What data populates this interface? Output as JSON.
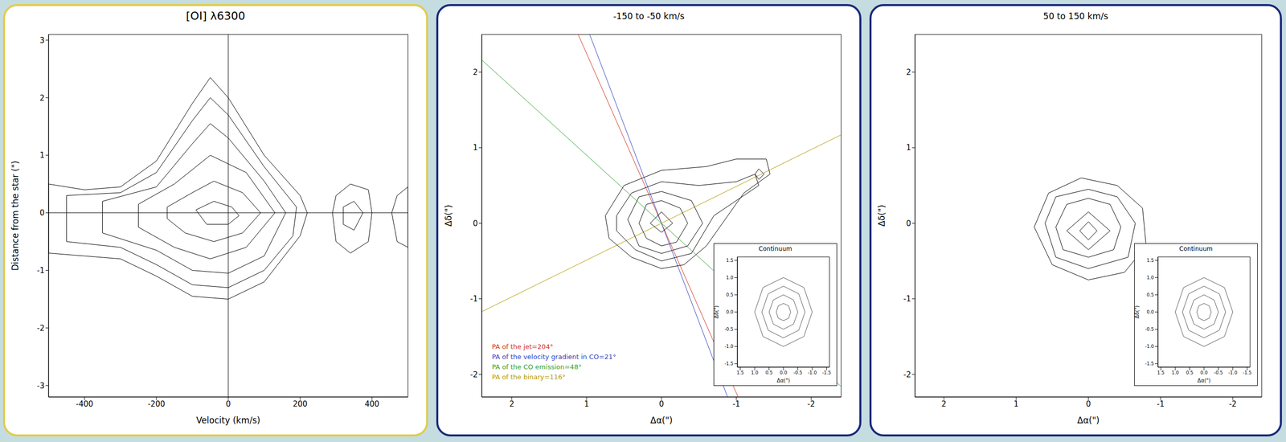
{
  "chart_data": [
    {
      "type": "contour",
      "title": "[OI] λ6300",
      "x_label": "Velocity (km/s)",
      "y_label": "Distance from the star (\")",
      "xlim": [
        -500,
        500
      ],
      "ylim": [
        -3.2,
        3.1
      ],
      "xticks": [
        -400,
        -200,
        0,
        200,
        400
      ],
      "yticks": [
        -3,
        -2,
        -1,
        0,
        1,
        2,
        3
      ],
      "color": "#000000",
      "x_ref": 0,
      "y_ref": 0,
      "contours": [
        {
          "x": [
            -500,
            -400,
            -300,
            -200,
            -100,
            -50,
            0,
            100,
            200,
            220,
            200,
            100,
            0,
            -100,
            -200,
            -300,
            -400,
            -500,
            -500
          ],
          "y": [
            0.5,
            0.4,
            0.45,
            0.9,
            1.9,
            2.35,
            2.0,
            1.0,
            0.3,
            0,
            -0.4,
            -1.2,
            -1.5,
            -1.45,
            -1.1,
            -0.8,
            -0.75,
            -0.7,
            0.5
          ]
        },
        {
          "x": [
            -450,
            -300,
            -200,
            -100,
            -50,
            0,
            100,
            190,
            180,
            100,
            0,
            -100,
            -200,
            -300,
            -450,
            -450
          ],
          "y": [
            0.3,
            0.35,
            0.7,
            1.6,
            2.0,
            1.7,
            0.8,
            0.1,
            -0.4,
            -1.0,
            -1.3,
            -1.25,
            -0.9,
            -0.6,
            -0.5,
            0.3
          ]
        },
        {
          "x": [
            -350,
            -200,
            -100,
            -50,
            0,
            100,
            160,
            100,
            0,
            -100,
            -200,
            -350,
            -350
          ],
          "y": [
            0.2,
            0.45,
            1.2,
            1.55,
            1.3,
            0.55,
            0,
            -0.75,
            -1.05,
            -1.0,
            -0.65,
            -0.35,
            0.2
          ]
        },
        {
          "x": [
            -250,
            -150,
            -50,
            50,
            130,
            50,
            -50,
            -150,
            -250,
            -250
          ],
          "y": [
            0.15,
            0.5,
            1.0,
            0.7,
            0,
            -0.6,
            -0.8,
            -0.6,
            -0.25,
            0.15
          ]
        },
        {
          "x": [
            -170,
            -100,
            -40,
            40,
            90,
            40,
            -40,
            -120,
            -170,
            -170
          ],
          "y": [
            0.1,
            0.35,
            0.55,
            0.35,
            0,
            -0.35,
            -0.5,
            -0.35,
            -0.1,
            0.1
          ]
        },
        {
          "x": [
            -90,
            -40,
            10,
            30,
            0,
            -60,
            -90
          ],
          "y": [
            0.05,
            0.2,
            0.1,
            -0.05,
            -0.2,
            -0.2,
            0.05
          ]
        },
        {
          "x": [
            300,
            340,
            390,
            400,
            390,
            340,
            300,
            290,
            300
          ],
          "y": [
            0.3,
            0.5,
            0.4,
            0,
            -0.5,
            -0.7,
            -0.5,
            0,
            0.3
          ]
        },
        {
          "x": [
            320,
            350,
            375,
            350,
            320,
            320
          ],
          "y": [
            0.1,
            0.2,
            0,
            -0.3,
            -0.2,
            0.1
          ]
        },
        {
          "x": [
            470,
            500,
            500,
            470,
            455,
            470
          ],
          "y": [
            0.3,
            0.45,
            -0.6,
            -0.5,
            0,
            0.3
          ]
        }
      ]
    },
    {
      "type": "contour",
      "title": "-150 to -50 km/s",
      "x_label": "Δα(\")",
      "y_label": "Δδ(\")",
      "xlim": [
        2.4,
        -2.4
      ],
      "ylim": [
        -2.3,
        2.5
      ],
      "xticks": [
        2,
        1,
        0,
        -1,
        -2
      ],
      "yticks": [
        -2,
        -1,
        0,
        1,
        2
      ],
      "color": "#000000",
      "pa_lines": [
        {
          "label": "PA of the jet=204°",
          "color": "#d03020",
          "angle": 204
        },
        {
          "label": "PA of the velocity gradient in CO=21°",
          "color": "#3040c0",
          "angle": 21
        },
        {
          "label": "PA of the CO emission=48°",
          "color": "#30a030",
          "angle": 48
        },
        {
          "label": "PA of the binary=116°",
          "color": "#b09a00",
          "angle": 116
        }
      ],
      "contours": [
        {
          "x": [
            0.75,
            0.5,
            0,
            -0.6,
            -1.0,
            -1.4,
            -1.45,
            -1.1,
            -0.6,
            -0.3,
            0,
            0.4,
            0.7,
            0.75
          ],
          "y": [
            0.1,
            0.5,
            0.7,
            0.75,
            0.85,
            0.85,
            0.65,
            0.4,
            -0.3,
            -0.55,
            -0.6,
            -0.45,
            -0.2,
            0.1
          ]
        },
        {
          "x": [
            0.6,
            0.4,
            0,
            -0.5,
            -1.0,
            -1.25,
            -1.3,
            -0.7,
            -0.4,
            0,
            0.35,
            0.6,
            0.6
          ],
          "y": [
            0.1,
            0.4,
            0.55,
            0.5,
            0.55,
            0.65,
            0.5,
            0.1,
            -0.4,
            -0.5,
            -0.35,
            -0.1,
            0.1
          ]
        },
        {
          "x": [
            0.45,
            0.3,
            0,
            -0.4,
            -0.55,
            -0.35,
            0,
            0.3,
            0.45
          ],
          "y": [
            0.05,
            0.35,
            0.42,
            0.3,
            0,
            -0.3,
            -0.4,
            -0.3,
            0.05
          ]
        },
        {
          "x": [
            0.3,
            0.2,
            0,
            -0.25,
            -0.35,
            -0.2,
            0,
            0.2,
            0.3
          ],
          "y": [
            0,
            0.25,
            0.3,
            0.2,
            0,
            -0.25,
            -0.3,
            -0.2,
            0
          ]
        },
        {
          "x": [
            0.15,
            0,
            -0.15,
            0,
            0.15
          ],
          "y": [
            0,
            0.15,
            0,
            -0.12,
            0
          ]
        },
        {
          "x": [
            -1.25,
            -1.3,
            -1.37,
            -1.3,
            -1.25
          ],
          "y": [
            0.65,
            0.72,
            0.65,
            0.58,
            0.65
          ]
        }
      ],
      "inset": {
        "title": "Continuum",
        "x_label": "Δα(\")",
        "y_label": "Δδ(\")",
        "xlim": [
          1.6,
          -1.6
        ],
        "ylim": [
          -1.6,
          1.6
        ],
        "xticks": [
          1.5,
          {
            "value": 1,
            "label": "1.0"
          },
          0.5,
          {
            "value": 0,
            "label": "0.0"
          },
          -0.5,
          {
            "value": -1,
            "label": "-1.0"
          },
          -1.5
        ],
        "yticks": [
          -1.5,
          {
            "value": -1,
            "label": "-1.0"
          },
          -0.5,
          {
            "value": 0,
            "label": "0.0"
          },
          0.5,
          {
            "value": 1,
            "label": "1.0"
          },
          1.5
        ],
        "color": "#555555",
        "contours": [
          {
            "x": [
              1,
              0.71,
              0,
              -0.71,
              -1,
              -0.71,
              0,
              0.71,
              1
            ],
            "y": [
              0,
              0.71,
              1,
              0.71,
              0,
              -0.71,
              -1,
              -0.71,
              0
            ]
          },
          {
            "x": [
              0.75,
              0.53,
              0,
              -0.53,
              -0.75,
              -0.53,
              0,
              0.53,
              0.75
            ],
            "y": [
              0,
              0.53,
              0.75,
              0.53,
              0,
              -0.53,
              -0.75,
              -0.53,
              0
            ]
          },
          {
            "x": [
              0.5,
              0.35,
              0,
              -0.35,
              -0.5,
              -0.35,
              0,
              0.35,
              0.5
            ],
            "y": [
              0,
              0.35,
              0.5,
              0.35,
              0,
              -0.35,
              -0.5,
              -0.35,
              0
            ]
          },
          {
            "x": [
              0.25,
              0.18,
              0,
              -0.18,
              -0.25,
              -0.18,
              0,
              0.18,
              0.25
            ],
            "y": [
              0,
              0.18,
              0.25,
              0.18,
              0,
              -0.18,
              -0.25,
              -0.18,
              0
            ]
          }
        ]
      }
    },
    {
      "type": "contour",
      "title": "50 to 150 km/s",
      "x_label": "Δα(\")",
      "y_label": "Δδ(\")",
      "xlim": [
        2.4,
        -2.4
      ],
      "ylim": [
        -2.3,
        2.5
      ],
      "xticks": [
        2,
        1,
        0,
        -1,
        -2
      ],
      "yticks": [
        -2,
        -1,
        0,
        1,
        2
      ],
      "color": "#000000",
      "contours": [
        {
          "x": [
            0.75,
            0.55,
            0.1,
            -0.4,
            -0.75,
            -0.8,
            -0.5,
            0,
            0.5,
            0.75
          ],
          "y": [
            -0.05,
            0.4,
            0.6,
            0.5,
            0.2,
            -0.3,
            -0.65,
            -0.75,
            -0.55,
            -0.05
          ]
        },
        {
          "x": [
            0.6,
            0.45,
            0,
            -0.4,
            -0.65,
            -0.55,
            0,
            0.45,
            0.6
          ],
          "y": [
            0,
            0.35,
            0.45,
            0.35,
            0,
            -0.45,
            -0.6,
            -0.45,
            0
          ]
        },
        {
          "x": [
            0.45,
            0.3,
            0,
            -0.3,
            -0.45,
            -0.35,
            0,
            0.35,
            0.45
          ],
          "y": [
            -0.05,
            0.25,
            0.33,
            0.25,
            -0.05,
            -0.35,
            -0.45,
            -0.35,
            -0.05
          ]
        },
        {
          "x": [
            0.3,
            0,
            -0.3,
            0,
            0.3
          ],
          "y": [
            -0.1,
            0.15,
            -0.1,
            -0.35,
            -0.1
          ]
        },
        {
          "x": [
            0.12,
            0,
            -0.12,
            0,
            0.12
          ],
          "y": [
            -0.1,
            0.02,
            -0.1,
            -0.22,
            -0.1
          ]
        }
      ],
      "inset": {
        "title": "Continuum",
        "x_label": "Δα(\")",
        "y_label": "Δδ(\")",
        "xlim": [
          1.6,
          -1.6
        ],
        "ylim": [
          -1.6,
          1.6
        ],
        "xticks": [
          1.5,
          {
            "value": 1,
            "label": "1.0"
          },
          0.5,
          {
            "value": 0,
            "label": "0.0"
          },
          -0.5,
          {
            "value": -1,
            "label": "-1.0"
          },
          -1.5
        ],
        "yticks": [
          -1.5,
          {
            "value": -1,
            "label": "-1.0"
          },
          -0.5,
          {
            "value": 0,
            "label": "0.0"
          },
          0.5,
          {
            "value": 1,
            "label": "1.0"
          },
          1.5
        ],
        "color": "#555555",
        "contours": [
          {
            "x": [
              1,
              0.71,
              0,
              -0.71,
              -1,
              -0.71,
              0,
              0.71,
              1
            ],
            "y": [
              0,
              0.71,
              1,
              0.71,
              0,
              -0.71,
              -1,
              -0.71,
              0
            ]
          },
          {
            "x": [
              0.75,
              0.53,
              0,
              -0.53,
              -0.75,
              -0.53,
              0,
              0.53,
              0.75
            ],
            "y": [
              0,
              0.53,
              0.75,
              0.53,
              0,
              -0.53,
              -0.75,
              -0.53,
              0
            ]
          },
          {
            "x": [
              0.5,
              0.35,
              0,
              -0.35,
              -0.5,
              -0.35,
              0,
              0.35,
              0.5
            ],
            "y": [
              0,
              0.35,
              0.5,
              0.35,
              0,
              -0.35,
              -0.5,
              -0.35,
              0
            ]
          },
          {
            "x": [
              0.25,
              0.18,
              0,
              -0.18,
              -0.25,
              -0.18,
              0,
              0.18,
              0.25
            ],
            "y": [
              0,
              0.18,
              0.25,
              0.18,
              0,
              -0.18,
              -0.25,
              -0.18,
              0
            ]
          }
        ]
      }
    }
  ]
}
